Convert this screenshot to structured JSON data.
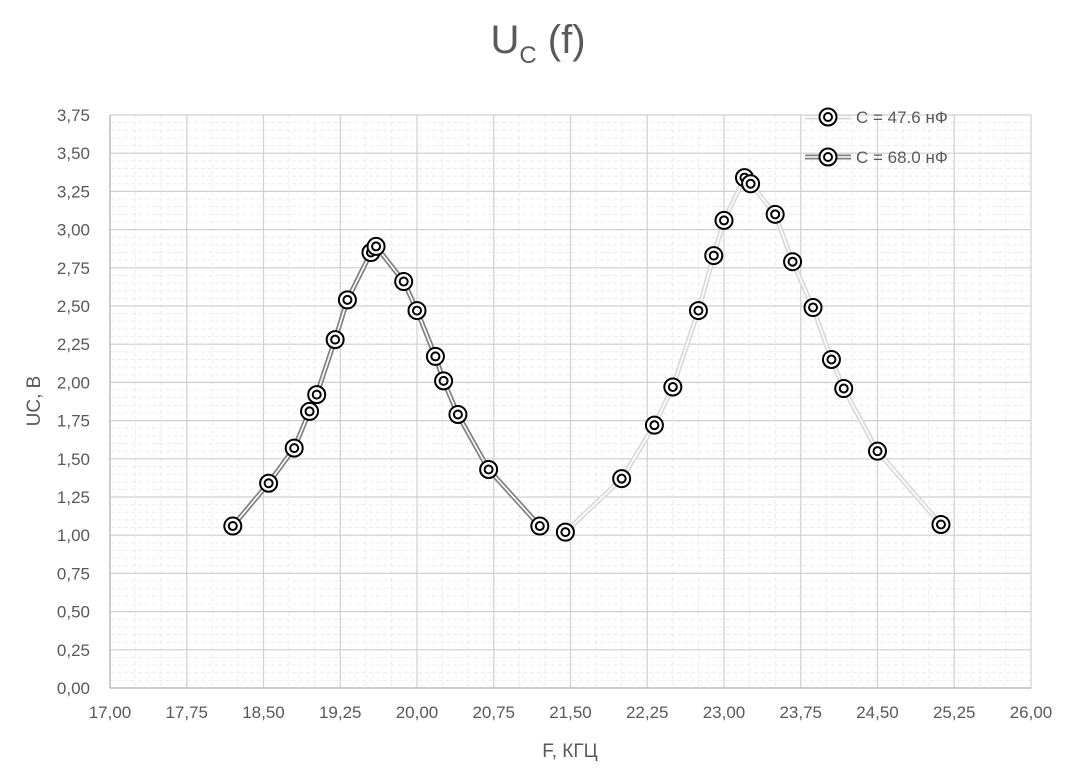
{
  "chart_data": {
    "type": "line",
    "title": {
      "main": "U",
      "subscript": "C",
      "suffix": " (f)"
    },
    "xlabel": "F, КГЦ",
    "ylabel": "UC, В",
    "xlim": [
      17.0,
      26.0
    ],
    "ylim": [
      0.0,
      3.75
    ],
    "x_ticks": [
      "17,00",
      "17,75",
      "18,50",
      "19,25",
      "20,00",
      "20,75",
      "21,50",
      "22,25",
      "23,00",
      "23,75",
      "24,50",
      "25,25",
      "26,00"
    ],
    "x_tick_values": [
      17.0,
      17.75,
      18.5,
      19.25,
      20.0,
      20.75,
      21.5,
      22.25,
      23.0,
      23.75,
      24.5,
      25.25,
      26.0
    ],
    "y_ticks": [
      "0,00",
      "0,25",
      "0,50",
      "0,75",
      "1,00",
      "1,25",
      "1,50",
      "1,75",
      "2,00",
      "2,25",
      "2,50",
      "2,75",
      "3,00",
      "3,25",
      "3,50",
      "3,75"
    ],
    "y_tick_values": [
      0,
      0.25,
      0.5,
      0.75,
      1.0,
      1.25,
      1.5,
      1.75,
      2.0,
      2.25,
      2.5,
      2.75,
      3.0,
      3.25,
      3.5,
      3.75
    ],
    "grid": true,
    "legend_position": "top-right",
    "series": [
      {
        "name": "C = 47.6 нФ",
        "color": "#d9d9d9",
        "points": [
          [
            21.45,
            1.02
          ],
          [
            22.0,
            1.37
          ],
          [
            22.32,
            1.72
          ],
          [
            22.5,
            1.97
          ],
          [
            22.75,
            2.47
          ],
          [
            22.9,
            2.83
          ],
          [
            23.0,
            3.06
          ],
          [
            23.2,
            3.34
          ],
          [
            23.26,
            3.3
          ],
          [
            23.5,
            3.1
          ],
          [
            23.67,
            2.79
          ],
          [
            23.87,
            2.49
          ],
          [
            24.05,
            2.15
          ],
          [
            24.17,
            1.96
          ],
          [
            24.5,
            1.55
          ],
          [
            25.12,
            1.07
          ]
        ]
      },
      {
        "name": "C = 68.0 нФ",
        "color": "#808080",
        "points": [
          [
            18.2,
            1.06
          ],
          [
            18.55,
            1.34
          ],
          [
            18.8,
            1.57
          ],
          [
            18.95,
            1.81
          ],
          [
            19.02,
            1.92
          ],
          [
            19.2,
            2.28
          ],
          [
            19.32,
            2.54
          ],
          [
            19.55,
            2.85
          ],
          [
            19.6,
            2.89
          ],
          [
            19.87,
            2.66
          ],
          [
            20.0,
            2.47
          ],
          [
            20.18,
            2.17
          ],
          [
            20.26,
            2.01
          ],
          [
            20.4,
            1.79
          ],
          [
            20.7,
            1.43
          ],
          [
            21.2,
            1.06
          ]
        ]
      }
    ]
  }
}
